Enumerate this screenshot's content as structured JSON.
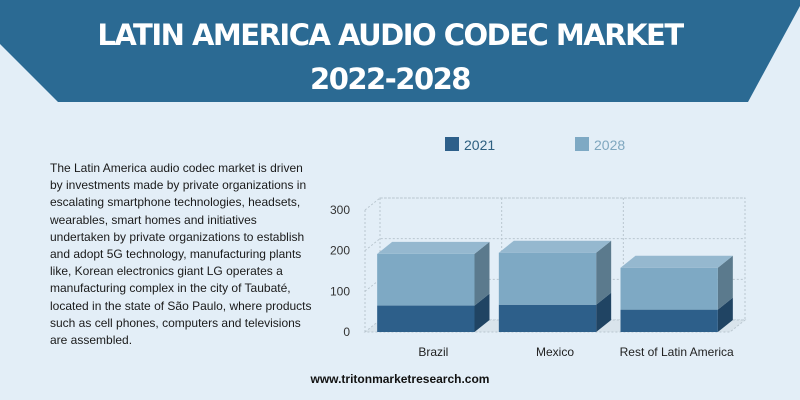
{
  "title": {
    "line1": "LATIN AMERICA  AUDIO CODEC MARKET",
    "line2": "2022-2028"
  },
  "description": "The Latin America audio codec market is driven by investments made by private organizations in escalating smartphone technologies, headsets, wearables, smart homes and initiatives undertaken by private organizations to establish and adopt 5G technology, manufacturing plants like, Korean electronics giant LG operates a manufacturing complex in the city of Taubaté, located in the state of São Paulo, where products such as cell phones, computers and televisions are assembled.",
  "website": "www.tritonmarketresearch.com",
  "colors": {
    "banner": "#2b6a93",
    "series_2021": "#2d5f8a",
    "series_2028": "#7ea9c4"
  },
  "chart_data": {
    "type": "bar",
    "stacked": true,
    "three_d": true,
    "categories": [
      "Brazil",
      "Mexico",
      "Rest of Latin America"
    ],
    "series": [
      {
        "name": "2021",
        "values": [
          65,
          67,
          55
        ]
      },
      {
        "name": "2028",
        "values": [
          127,
          128,
          103
        ]
      }
    ],
    "y_ticks": [
      0,
      100,
      200,
      300
    ],
    "ylim": [
      0,
      300
    ],
    "grid": true,
    "legend_position": "top"
  }
}
